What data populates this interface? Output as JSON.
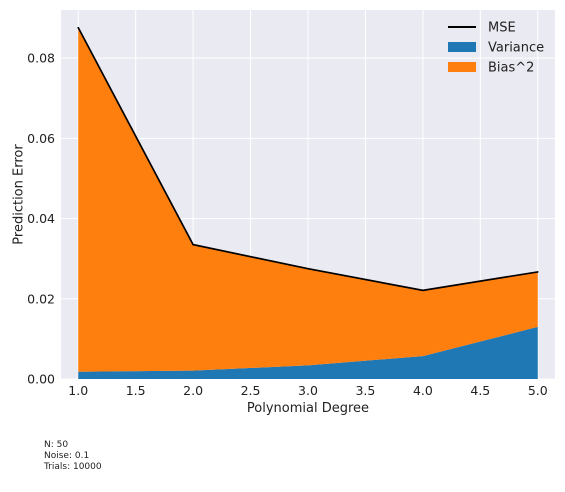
{
  "chart_data": {
    "type": "area",
    "stacked": true,
    "x": [
      1.0,
      2.0,
      3.0,
      4.0,
      5.0
    ],
    "series": [
      {
        "name": "Variance",
        "values": [
          0.0018,
          0.0021,
          0.0034,
          0.0057,
          0.013
        ],
        "color": "#1f77b4"
      },
      {
        "name": "Bias^2",
        "values": [
          0.0858,
          0.0314,
          0.0241,
          0.0164,
          0.0137
        ],
        "color": "#ff7f0e"
      }
    ],
    "line_series": {
      "name": "MSE",
      "values": [
        0.0876,
        0.0335,
        0.0275,
        0.0221,
        0.0267
      ],
      "color": "#000000"
    },
    "xlabel": "Polynomial Degree",
    "ylabel": "Prediction Error",
    "xlim": [
      0.85,
      5.15
    ],
    "ylim": [
      0.0,
      0.092
    ],
    "xticks": [
      "1.0",
      "1.5",
      "2.0",
      "2.5",
      "3.0",
      "3.5",
      "4.0",
      "4.5",
      "5.0"
    ],
    "yticks": [
      "0.00",
      "0.02",
      "0.04",
      "0.06",
      "0.08"
    ],
    "grid": true,
    "background": "#eaeaf2",
    "legend_position": "top-right"
  },
  "annotations": [
    "N: 50",
    "Noise: 0.1",
    "Trials: 10000"
  ]
}
